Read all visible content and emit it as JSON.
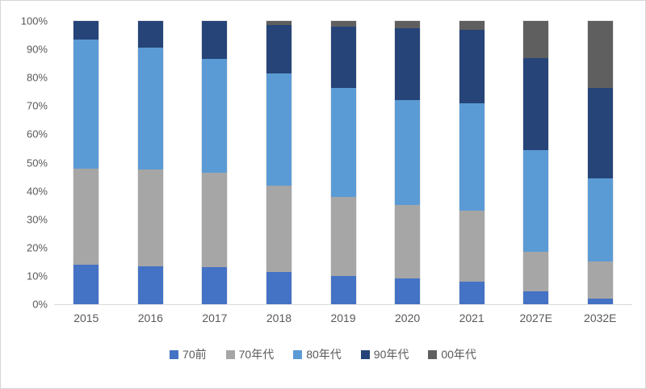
{
  "chart_data": {
    "type": "bar",
    "variant": "100%-stacked-column",
    "title": "",
    "xlabel": "",
    "ylabel": "",
    "ylim": [
      0,
      100
    ],
    "grid": false,
    "legend_position": "bottom",
    "y_ticks": [
      "100%",
      "90%",
      "80%",
      "70%",
      "60%",
      "50%",
      "40%",
      "30%",
      "20%",
      "10%",
      "0%"
    ],
    "categories": [
      "2015",
      "2016",
      "2017",
      "2018",
      "2019",
      "2020",
      "2021",
      "2027E",
      "2032E"
    ],
    "series": [
      {
        "name": "70前",
        "color": "#4472C4",
        "values": [
          14,
          13.5,
          13,
          11.5,
          10,
          9,
          8,
          4.5,
          2
        ]
      },
      {
        "name": "70年代",
        "color": "#A6A6A6",
        "values": [
          34,
          34,
          33.5,
          30.5,
          28,
          26,
          25,
          14,
          13
        ]
      },
      {
        "name": "80年代",
        "color": "#5B9BD5",
        "values": [
          45.5,
          43,
          40,
          39.5,
          38.5,
          37,
          38,
          36,
          29.5
        ]
      },
      {
        "name": "90年代",
        "color": "#264478",
        "values": [
          6.5,
          9.5,
          13.5,
          17,
          21.5,
          25.5,
          26,
          32.5,
          32
        ]
      },
      {
        "name": "00年代",
        "color": "#5F5F5F",
        "values": [
          0,
          0,
          0,
          1.5,
          2,
          2.5,
          3,
          13,
          23.5
        ]
      }
    ],
    "colors": {
      "axis_line": "#d9d9d9",
      "tick_text": "#595959"
    }
  }
}
